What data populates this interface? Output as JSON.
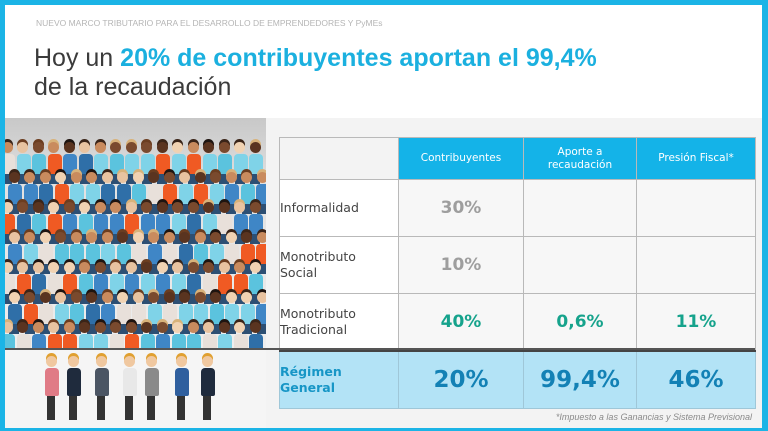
{
  "header": {
    "kicker": "NUEVO MARCO TRIBUTARIO PARA EL DESARROLLO DE EMPRENDEDORES Y PyMEs",
    "title_part1": "Hoy un ",
    "title_highlight": "20% de contribuyentes aportan el 99,4%",
    "title_part2": "de la recaudación"
  },
  "colors": {
    "frame": "#1bb4e6",
    "accent": "#1bb0df",
    "header_cell": "#14b3e8",
    "teal_value": "#16a38c",
    "highlight_row": "#b3e3f6",
    "highlight_text": "#1381b5"
  },
  "table": {
    "columns": [
      "Contribuyentes",
      "Aporte a recaudación",
      "Presión Fiscal*"
    ],
    "rows": [
      {
        "label_l1": "Informalidad",
        "label_l2": "",
        "contribuyentes": "30%",
        "aporte": "",
        "presion": ""
      },
      {
        "label_l1": "Monotributo",
        "label_l2": "Social",
        "contribuyentes": "10%",
        "aporte": "",
        "presion": ""
      },
      {
        "label_l1": "Monotributo",
        "label_l2": "Tradicional",
        "contribuyentes": "40%",
        "aporte": "0,6%",
        "presion": "11%"
      },
      {
        "label_l1": "Régimen",
        "label_l2": "General",
        "contribuyentes": "20%",
        "aporte": "99,4%",
        "presion": "46%"
      }
    ]
  },
  "footnote": "*Impuesto a las Ganancias y Sistema Previsional",
  "images": {
    "crowd": "crowd-of-people-illustration",
    "heroes": "business-people-lifting-crowd-illustration"
  }
}
